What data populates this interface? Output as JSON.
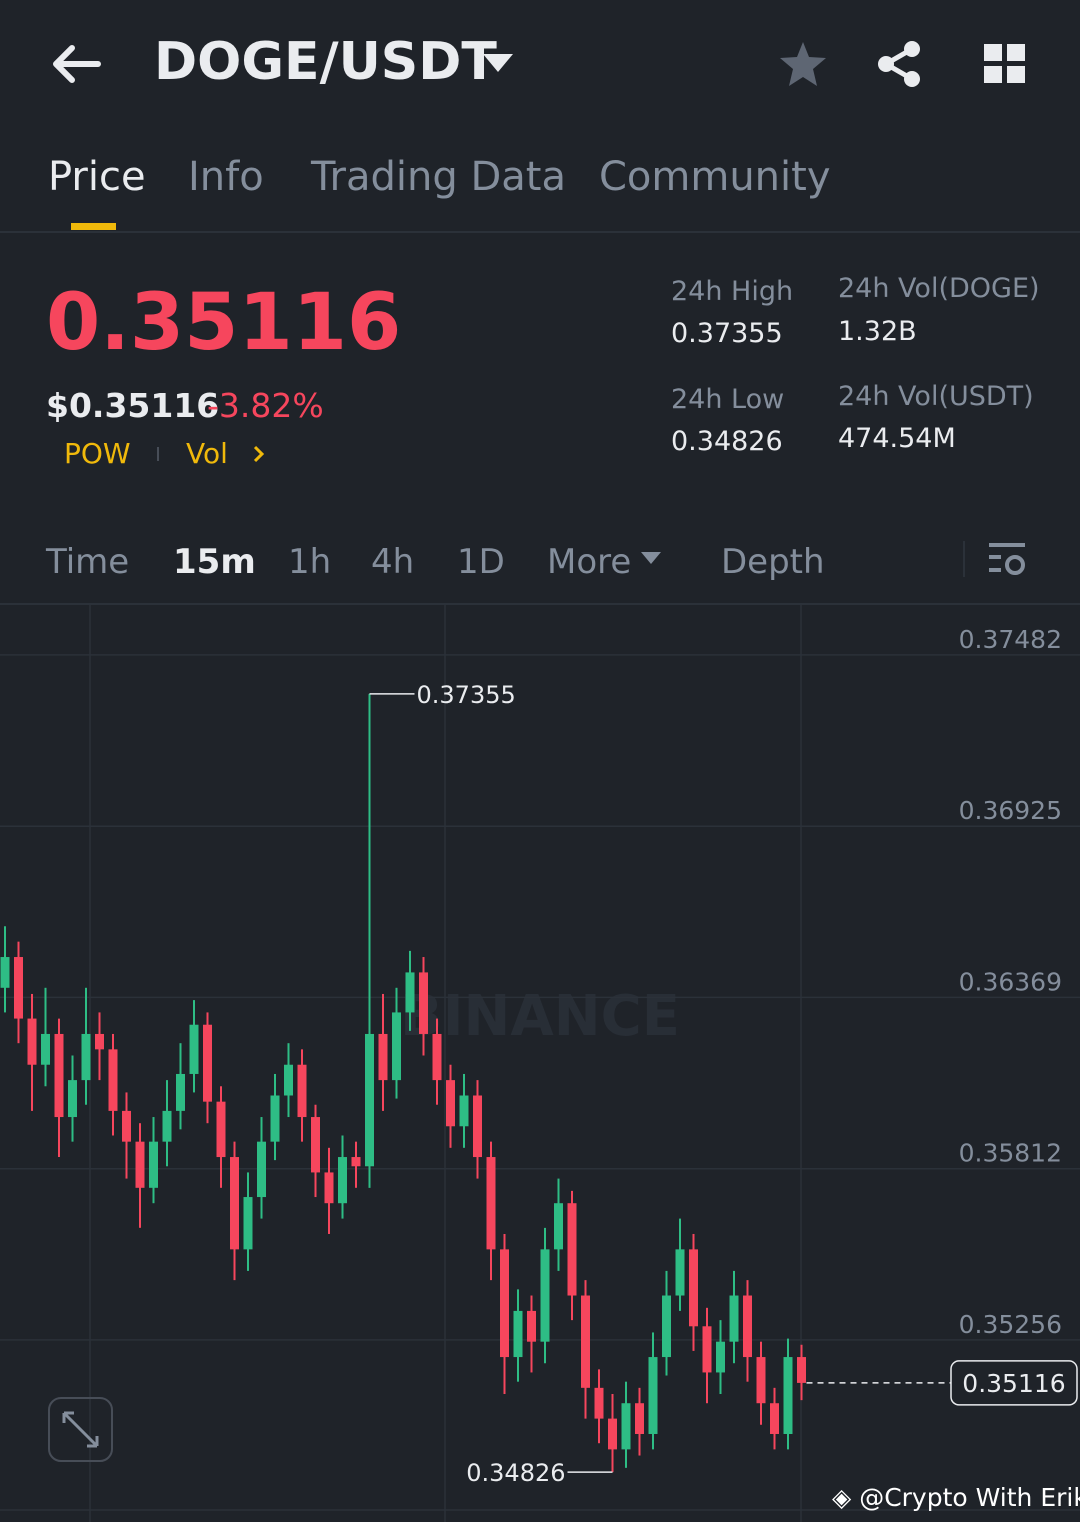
{
  "header": {
    "pair": "DOGE/USDT"
  },
  "tabs": [
    "Price",
    "Info",
    "Trading Data",
    "Community"
  ],
  "ticker": {
    "last_price": "0.35116",
    "usd_price": "$0.35116",
    "change": "-3.82%",
    "tags": [
      "POW",
      "Vol"
    ],
    "stats": [
      {
        "label": "24h High",
        "value": "0.37355"
      },
      {
        "label": "24h Vol(DOGE)",
        "value": "1.32B"
      },
      {
        "label": "24h Low",
        "value": "0.34826"
      },
      {
        "label": "24h Vol(USDT)",
        "value": "474.54M"
      }
    ]
  },
  "intervals": [
    "Time",
    "15m",
    "1h",
    "4h",
    "1D",
    "More",
    "Depth"
  ],
  "chart_data": {
    "type": "candlestick",
    "watermark": "BINANCE",
    "up_color": "#2ebd85",
    "down_color": "#f6465d",
    "ylim": [
      0.34664,
      0.37644
    ],
    "yticks": [
      0.37482,
      0.36925,
      0.36369,
      0.35812,
      0.35256
    ],
    "grid": true,
    "candles": [
      [
        0.364,
        0.366,
        0.3632,
        0.365
      ],
      [
        0.365,
        0.3655,
        0.3622,
        0.363
      ],
      [
        0.363,
        0.3638,
        0.36,
        0.3615
      ],
      [
        0.3615,
        0.364,
        0.3608,
        0.3625
      ],
      [
        0.3625,
        0.363,
        0.3585,
        0.3598
      ],
      [
        0.3598,
        0.3618,
        0.359,
        0.361
      ],
      [
        0.361,
        0.364,
        0.3602,
        0.3625
      ],
      [
        0.3625,
        0.3632,
        0.361,
        0.362
      ],
      [
        0.362,
        0.3625,
        0.3592,
        0.36
      ],
      [
        0.36,
        0.3606,
        0.3578,
        0.359
      ],
      [
        0.359,
        0.3596,
        0.3562,
        0.3575
      ],
      [
        0.3575,
        0.3598,
        0.357,
        0.359
      ],
      [
        0.359,
        0.361,
        0.3582,
        0.36
      ],
      [
        0.36,
        0.3622,
        0.3594,
        0.3612
      ],
      [
        0.3612,
        0.3636,
        0.3606,
        0.3628
      ],
      [
        0.3628,
        0.3632,
        0.3596,
        0.3603
      ],
      [
        0.3603,
        0.3608,
        0.3575,
        0.3585
      ],
      [
        0.3585,
        0.359,
        0.3545,
        0.3555
      ],
      [
        0.3555,
        0.358,
        0.3548,
        0.3572
      ],
      [
        0.3572,
        0.3598,
        0.3565,
        0.359
      ],
      [
        0.359,
        0.3612,
        0.3584,
        0.3605
      ],
      [
        0.3605,
        0.3622,
        0.3598,
        0.3615
      ],
      [
        0.3615,
        0.362,
        0.359,
        0.3598
      ],
      [
        0.3598,
        0.3602,
        0.3572,
        0.358
      ],
      [
        0.358,
        0.3588,
        0.356,
        0.357
      ],
      [
        0.357,
        0.3592,
        0.3565,
        0.3585
      ],
      [
        0.3585,
        0.359,
        0.3575,
        0.3582
      ],
      [
        0.3582,
        0.37355,
        0.3575,
        0.3625
      ],
      [
        0.3625,
        0.3638,
        0.36,
        0.361
      ],
      [
        0.361,
        0.364,
        0.3604,
        0.3632
      ],
      [
        0.3632,
        0.3652,
        0.3626,
        0.3645
      ],
      [
        0.3645,
        0.365,
        0.3618,
        0.3625
      ],
      [
        0.3625,
        0.363,
        0.3602,
        0.361
      ],
      [
        0.361,
        0.3615,
        0.3588,
        0.3595
      ],
      [
        0.3595,
        0.3612,
        0.3588,
        0.3605
      ],
      [
        0.3605,
        0.361,
        0.3578,
        0.3585
      ],
      [
        0.3585,
        0.359,
        0.3545,
        0.3555
      ],
      [
        0.3555,
        0.356,
        0.3508,
        0.352
      ],
      [
        0.352,
        0.3542,
        0.3512,
        0.3535
      ],
      [
        0.3535,
        0.354,
        0.3515,
        0.3525
      ],
      [
        0.3525,
        0.3562,
        0.3518,
        0.3555
      ],
      [
        0.3555,
        0.3578,
        0.3548,
        0.357
      ],
      [
        0.357,
        0.3574,
        0.3532,
        0.354
      ],
      [
        0.354,
        0.3545,
        0.35,
        0.351
      ],
      [
        0.351,
        0.3516,
        0.3492,
        0.35
      ],
      [
        0.35,
        0.3508,
        0.34826,
        0.349
      ],
      [
        0.349,
        0.3512,
        0.3484,
        0.3505
      ],
      [
        0.3505,
        0.351,
        0.3488,
        0.3495
      ],
      [
        0.3495,
        0.3528,
        0.349,
        0.352
      ],
      [
        0.352,
        0.3548,
        0.3514,
        0.354
      ],
      [
        0.354,
        0.3565,
        0.3535,
        0.3555
      ],
      [
        0.3555,
        0.356,
        0.3522,
        0.353
      ],
      [
        0.353,
        0.3536,
        0.3505,
        0.3515
      ],
      [
        0.3515,
        0.3532,
        0.3508,
        0.3525
      ],
      [
        0.3525,
        0.3548,
        0.3518,
        0.354
      ],
      [
        0.354,
        0.3545,
        0.3512,
        0.352
      ],
      [
        0.352,
        0.3525,
        0.3498,
        0.3505
      ],
      [
        0.3505,
        0.351,
        0.349,
        0.3495
      ],
      [
        0.3495,
        0.3526,
        0.349,
        0.352
      ],
      [
        0.352,
        0.3524,
        0.3506,
        0.35116
      ]
    ]
  },
  "watermark": "@Crypto With Erik"
}
